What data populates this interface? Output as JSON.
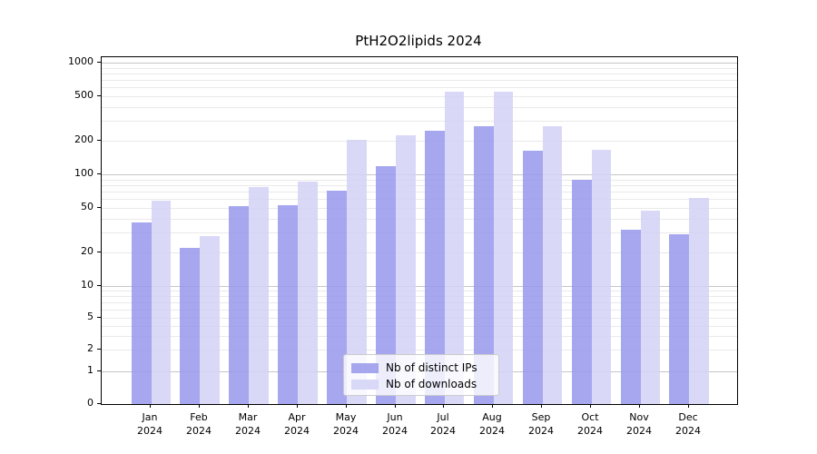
{
  "title": "PtH2O2lipids 2024",
  "colors": {
    "ips_bar": "#9898ec",
    "downloads_bar": "#d2d2f6",
    "grid_minor": "#e9e9e9",
    "grid_major": "#c6c6c6",
    "axis": "#000000",
    "legend_border": "#cccccc"
  },
  "legend": {
    "items": [
      {
        "label": "Nb of distinct IPs",
        "color_key": "ips_bar"
      },
      {
        "label": "Nb of downloads",
        "color_key": "downloads_bar"
      }
    ]
  },
  "y_axis": {
    "tick_labels": [
      "1000",
      "500",
      "200",
      "100",
      "50",
      "20",
      "10",
      "5",
      "2",
      "1",
      "0"
    ]
  },
  "x_axis": {
    "year": "2024",
    "months": [
      "Jan",
      "Feb",
      "Mar",
      "Apr",
      "May",
      "Jun",
      "Jul",
      "Aug",
      "Sep",
      "Oct",
      "Nov",
      "Dec"
    ]
  },
  "chart_data": {
    "type": "bar",
    "title": "PtH2O2lipids 2024",
    "categories": [
      "Jan 2024",
      "Feb 2024",
      "Mar 2024",
      "Apr 2024",
      "May 2024",
      "Jun 2024",
      "Jul 2024",
      "Aug 2024",
      "Sep 2024",
      "Oct 2024",
      "Nov 2024",
      "Dec 2024"
    ],
    "series": [
      {
        "name": "Nb of distinct IPs",
        "values": [
          37,
          22,
          52,
          53,
          72,
          119,
          245,
          268,
          163,
          89,
          32,
          29
        ]
      },
      {
        "name": "Nb of downloads",
        "values": [
          58,
          28,
          77,
          86,
          202,
          222,
          545,
          545,
          270,
          166,
          47,
          61
        ]
      }
    ],
    "yscale": "symlog",
    "yticks": [
      1000,
      500,
      200,
      100,
      50,
      20,
      10,
      5,
      2,
      1,
      0
    ],
    "ylim": [
      0,
      1150
    ],
    "xlabel": "",
    "ylabel": "",
    "grid": "horizontal",
    "legend_position": "lower center"
  }
}
